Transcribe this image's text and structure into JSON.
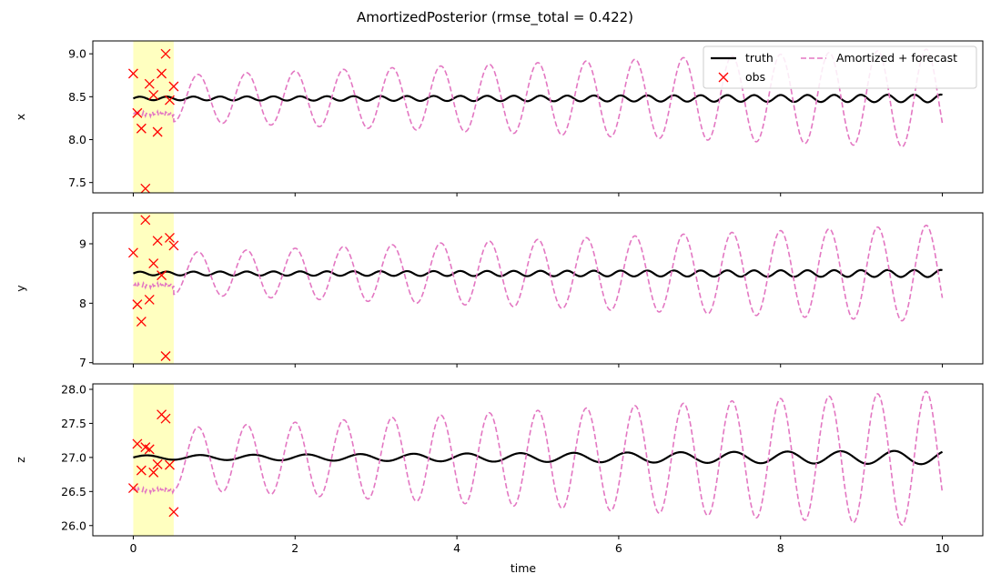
{
  "title": "AmortizedPosterior (rmse_total = 0.422)",
  "xlabel": "time",
  "colors": {
    "truth": "#000000",
    "obs": "#ff0000",
    "amortized": "#e377c2",
    "highlight": "#ffffc0"
  },
  "legend": {
    "placement": "top-right (top panel)",
    "truth_label": "truth",
    "obs_label": "obs",
    "amortized_label": "Amortized + forecast"
  },
  "chart_data": [
    {
      "type": "line",
      "panel": "x",
      "ylabel": "x",
      "xlim": [
        -0.5,
        10.5
      ],
      "ylim": [
        7.38,
        9.15
      ],
      "xticks": [
        0,
        2,
        4,
        6,
        8,
        10
      ],
      "yticks": [
        7.5,
        8.0,
        8.5,
        9.0
      ],
      "ytick_labels": [
        "7.5",
        "8.0",
        "8.5",
        "9.0"
      ],
      "highlight_window": [
        0,
        0.5
      ],
      "truth": {
        "mean": 8.48,
        "amp_start": 0.02,
        "amp_end": 0.045,
        "period": 0.33,
        "t_end": 10
      },
      "amortized": {
        "center": 8.48,
        "amp_start": 0.27,
        "amp_end": 0.58,
        "period": 0.6,
        "t_start": 0.5,
        "t_end": 10,
        "window_level": 8.3
      },
      "obs": {
        "t": [
          0.0,
          0.05,
          0.1,
          0.15,
          0.2,
          0.25,
          0.3,
          0.35,
          0.4,
          0.45,
          0.5
        ],
        "values": [
          8.77,
          8.31,
          8.13,
          7.43,
          8.65,
          8.52,
          8.09,
          8.77,
          9.0,
          8.46,
          8.62
        ]
      }
    },
    {
      "type": "line",
      "panel": "y",
      "ylabel": "y",
      "xlim": [
        -0.5,
        10.5
      ],
      "ylim": [
        6.98,
        9.52
      ],
      "xticks": [
        0,
        2,
        4,
        6,
        8,
        10
      ],
      "yticks": [
        7,
        8,
        9
      ],
      "ytick_labels": [
        "7",
        "8",
        "9"
      ],
      "highlight_window": [
        0,
        0.5
      ],
      "truth": {
        "mean": 8.5,
        "amp_start": 0.03,
        "amp_end": 0.06,
        "period": 0.33,
        "t_end": 10
      },
      "amortized": {
        "center": 8.5,
        "amp_start": 0.35,
        "amp_end": 0.82,
        "period": 0.6,
        "t_start": 0.5,
        "t_end": 10,
        "window_level": 8.3
      },
      "obs": {
        "t": [
          0.0,
          0.05,
          0.1,
          0.15,
          0.2,
          0.25,
          0.3,
          0.35,
          0.4,
          0.45,
          0.5
        ],
        "values": [
          8.85,
          7.98,
          7.69,
          9.4,
          8.06,
          8.67,
          9.05,
          8.47,
          7.11,
          9.1,
          8.97
        ]
      }
    },
    {
      "type": "line",
      "panel": "z",
      "ylabel": "z",
      "xlim": [
        -0.5,
        10.5
      ],
      "ylim": [
        25.85,
        28.08
      ],
      "xticks": [
        0,
        2,
        4,
        6,
        8,
        10
      ],
      "yticks": [
        26.0,
        26.5,
        27.0,
        27.5,
        28.0
      ],
      "ytick_labels": [
        "26.0",
        "26.5",
        "27.0",
        "27.5",
        "28.0"
      ],
      "highlight_window": [
        0,
        0.5
      ],
      "truth": {
        "mean": 27.0,
        "amp_start": 0.03,
        "amp_end": 0.1,
        "period": 0.66,
        "t_end": 10
      },
      "amortized": {
        "center": 26.98,
        "amp_start": 0.45,
        "amp_end": 1.0,
        "period": 0.6,
        "t_start": 0.5,
        "t_end": 10,
        "window_level": 26.52
      },
      "obs": {
        "t": [
          0.0,
          0.05,
          0.1,
          0.15,
          0.2,
          0.25,
          0.3,
          0.35,
          0.4,
          0.45,
          0.5
        ],
        "values": [
          26.55,
          27.2,
          26.81,
          27.15,
          27.12,
          26.78,
          26.9,
          27.63,
          27.57,
          26.89,
          26.2
        ]
      }
    }
  ]
}
